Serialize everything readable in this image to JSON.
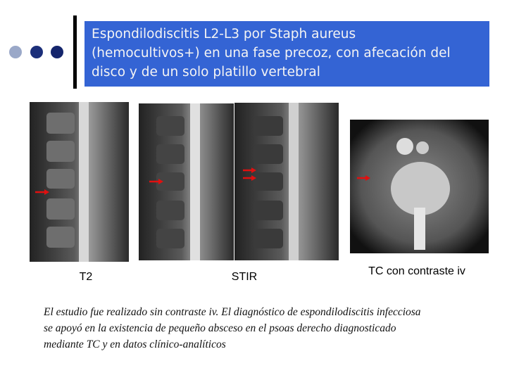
{
  "title": {
    "lines": [
      "Espondilodiscitis L2-L3 por Staph aureus",
      "(hemocultivos+) en una fase precoz, con afecación del",
      "disco y de un solo platillo vertebral"
    ]
  },
  "image_labels": [
    "T2",
    "STIR",
    "TC con contraste iv"
  ],
  "caption": {
    "lines": [
      "El estudio fue realizado sin contraste iv. El diagnóstico de espondilodiscitis infecciosa",
      "se apoyó en la existencia de pequeño absceso en el psoas derecho diagnosticado",
      "mediante TC y  en datos clínico-analíticos"
    ]
  }
}
